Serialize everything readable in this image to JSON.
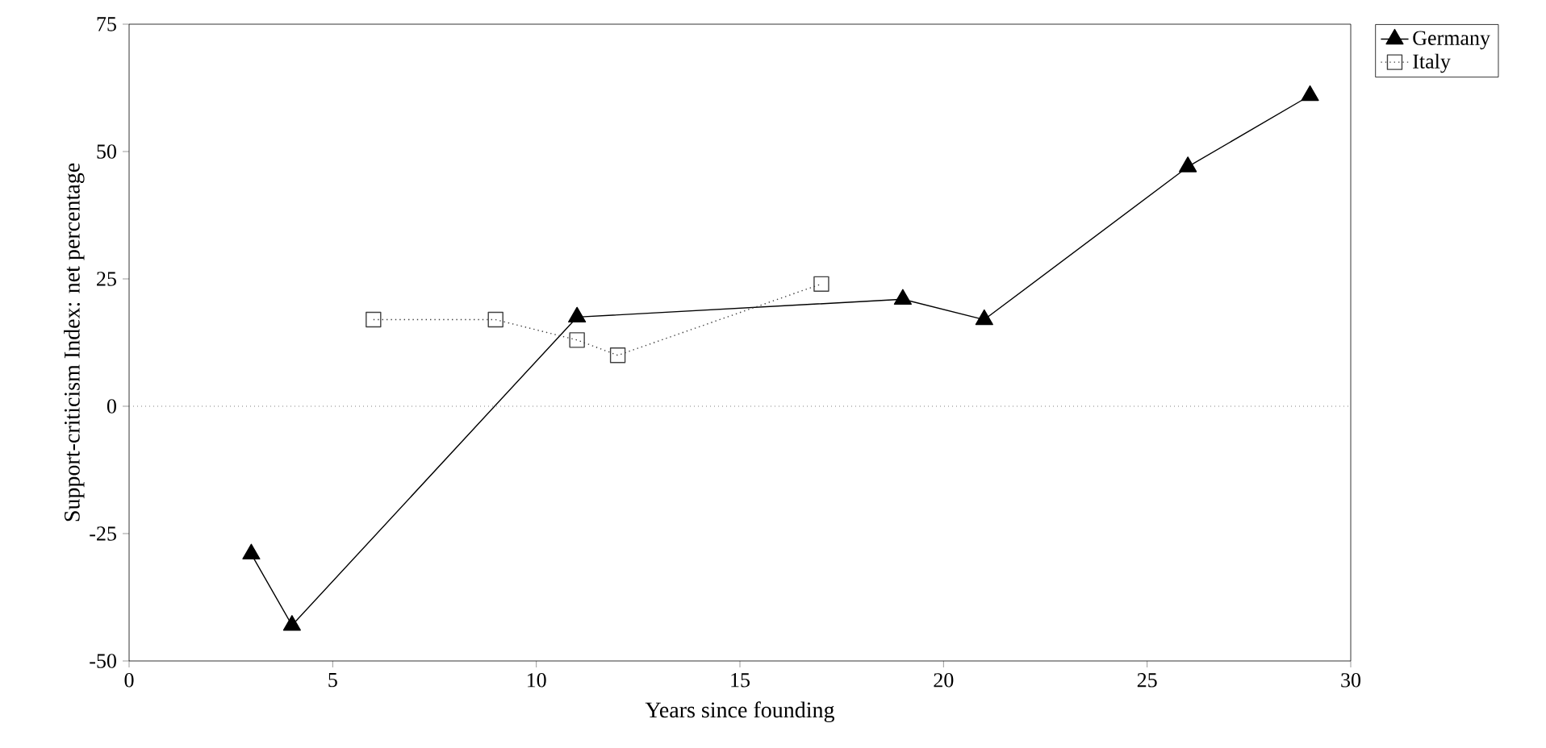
{
  "chart_data": {
    "type": "line",
    "xlabel": "Years since founding",
    "ylabel": "Support-criticism Index: net percentage",
    "xlim": [
      0,
      30
    ],
    "xticks": [
      0,
      5,
      10,
      15,
      20,
      25,
      30
    ],
    "ylim": [
      -50,
      75
    ],
    "yticks": [
      -50,
      -25,
      0,
      25,
      50,
      75
    ],
    "legend": "top right",
    "ref_lines": [
      {
        "axis": "y",
        "value": 0,
        "line_style": "dotted",
        "color": "#808080"
      }
    ],
    "series": [
      {
        "name": "Germany",
        "color": "#000000",
        "marker": "triangle",
        "line_style": "solid",
        "x": [
          3,
          4,
          11,
          19,
          21,
          26,
          29
        ],
        "values": [
          -29,
          -43,
          17.5,
          21,
          17,
          47,
          61
        ]
      },
      {
        "name": "Italy",
        "color": "#404040",
        "marker": "square",
        "line_style": "dotted",
        "x": [
          6,
          9,
          11,
          12,
          17
        ],
        "values": [
          17,
          17,
          13,
          10,
          24
        ]
      }
    ]
  }
}
